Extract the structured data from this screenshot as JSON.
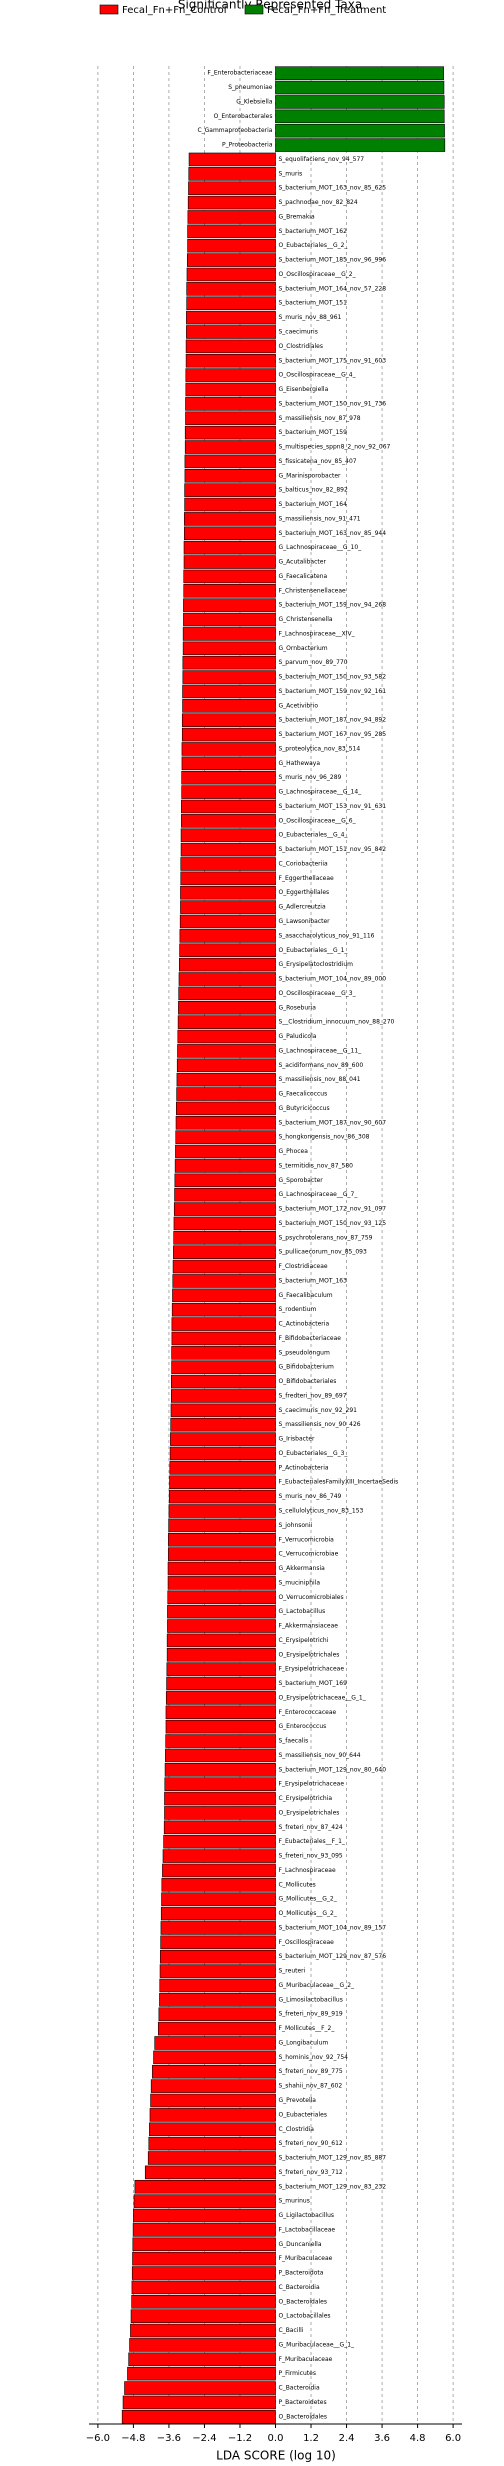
{
  "chart_data": {
    "type": "bar",
    "orientation": "horizontal",
    "title": "Significantly Represented Taxa",
    "x_label": "LDA SCORE (log 10)",
    "categories": [
      "F_Enterobacteriaceae",
      "S_pneumoniae",
      "G_Klebsiella",
      "O_Enterobacterales",
      "C_Gammaproteobacteria",
      "P_Proteobacteria",
      "S_equolifaciens_nov_94_577",
      "S_muris",
      "S_bacterium_MOT_163_nov_85_625",
      "S_pachnodae_nov_82_824",
      "G_Bremakia",
      "S_bacterium_MOT_162",
      "O_Eubacteriales__G_2_",
      "S_bacterium_MOT_185_nov_96_996",
      "O_Oscillospiraceae__G_2_",
      "S_bacterium_MOT_164_nov_57_228",
      "S_bacterium_MOT_151",
      "S_muris_nov_88_961",
      "S_caecimuris",
      "O_Clostridiales",
      "S_bacterium_MOT_175_nov_91_603",
      "O_Oscillospiraceae__G_4_",
      "G_Eisenbergiella",
      "S_bacterium_MOT_150_nov_91_736",
      "S_massiliensis_nov_87_978",
      "S_bacterium_MOT_159",
      "S_multispecies_sppn8_2_nov_92_067",
      "S_fissicatena_nov_85_407",
      "G_Marinisporobacter",
      "S_balticus_nov_82_892",
      "S_bacterium_MOT_164",
      "S_massiliensis_nov_91_471",
      "S_bacterium_MOT_163_nov_85_944",
      "G_Lachnospiraceae__G_10_",
      "G_Acutalibacter",
      "G_Faecalicatena",
      "F_Christensenellaceae",
      "S_bacterium_MOT_159_nov_94_268",
      "G_Christensenella",
      "F_Lachnospiraceae__XIV_",
      "G_Ornbacterium",
      "S_parvum_nov_89_770",
      "S_bacterium_MOT_150_nov_93_582",
      "S_bacterium_MOT_159_nov_92_161",
      "G_Acetivibrio",
      "S_bacterium_MOT_187_nov_94_892",
      "S_bacterium_MOT_167_nov_95_285",
      "S_proteolytica_nov_83_514",
      "G_Hathewaya",
      "S_muris_nov_96_289",
      "G_Lachnospiraceae__G_14_",
      "S_bacterium_MOT_153_nov_91_631",
      "O_Oscillospiraceae__G_6_",
      "O_Eubacteriales__G_4_",
      "S_bacterium_MOT_151_nov_95_842",
      "C_Coriobacteriia",
      "F_Eggerthellaceae",
      "O_Eggerthellales",
      "G_Adlercreutzia",
      "G_Lawsonibacter",
      "S_asaccharolyticus_nov_91_116",
      "O_Eubacteriales__G_1_",
      "G_Erysipelatoclostridium",
      "S_bacterium_MOT_104_nov_89_000",
      "O_Oscillospiraceae__G_3_",
      "G_Roseburia",
      "S__Clostridium_innocuum_nov_88_270",
      "G_Paludicola",
      "G_Lachnospiraceae__G_11_",
      "S_acidiformans_nov_89_600",
      "S_massiliensis_nov_88_041",
      "G_Faecalicoccus",
      "G_Butyricicoccus",
      "S_bacterium_MOT_187_nov_90_607",
      "S_hongkongensis_nov_86_308",
      "G_Phocea",
      "S_termitidis_nov_87_580",
      "G_Sporobacter",
      "G_Lachnospiraceae__G_7_",
      "S_bacterium_MOT_172_nov_91_097",
      "S_bacterium_MOT_150_nov_93_125",
      "S_psychrotolerans_nov_87_759",
      "S_pullicaecorum_nov_85_093",
      "F_Clostridiaceae",
      "S_bacterium_MOT_163",
      "G_Faecalibaculum",
      "S_rodentium",
      "C_Actinobacteria",
      "F_Bifidobacteriaceae",
      "S_pseudolongum",
      "G_Bifidobacterium",
      "O_Bifidobacteriales",
      "S_fredteri_nov_89_697",
      "S_caecimuris_nov_92_291",
      "S_massiliensis_nov_90_426",
      "G_Irisbacter",
      "O_Eubacteriales__G_3_",
      "P_Actinobacteria",
      "F_EubacterialesFamilyXIII_IncertaeSedis",
      "S_muris_nov_86_749",
      "S_cellulolyticus_nov_83_153",
      "S_johnsonii",
      "F_Verrucomicrobia",
      "C_Verrucomicrobiae",
      "G_Akkermansia",
      "S_muciniphila",
      "O_Verrucomicrobiales",
      "G_Lactobacillus",
      "F_Akkermansiaceae",
      "C_Erysipelotrichi",
      "O_Erysipelotrichales",
      "F_Erysipelotrichaceae",
      "S_bacterium_MOT_169",
      "O_Erysipelotrichaceae__G_1_",
      "F_Enterococcaceae",
      "G_Enterococcus",
      "S_faecalis",
      "S_massiliensis_nov_90_644",
      "S_bacterium_MOT_129_nov_80_640",
      "F_Erysipelotrichaceae",
      "C_Erysipelotrichia",
      "O_Erysipelotrichales",
      "S_freteri_nov_87_424",
      "F_Eubacteriales__F_1_",
      "S_freteri_nov_93_095",
      "F_Lachnospiraceae",
      "C_Mollicutes",
      "G_Mollicutes__G_2_",
      "O_Mollicutes__G_2_",
      "S_bacterium_MOT_104_nov_89_157",
      "F_Oscillospiraceae",
      "S_bacterium_MOT_129_nov_87_576",
      "S_reuteri",
      "G_Muribaculaceae__G_2_",
      "G_Limosilactobacillus",
      "S_freteri_nov_89_919",
      "F_Mollicutes__F_2_",
      "G_Longibaculum",
      "S_hominis_nov_92_754",
      "S_freteri_nov_89_775",
      "S_shahii_nov_87_602",
      "G_Prevotella",
      "O_Eubacteriales",
      "C_Clostridia",
      "S_freteri_nov_90_612",
      "S_bacterium_MOT_129_nov_85_887",
      "S_freteri_nov_93_712",
      "S_bacterium_MOT_129_nov_83_232",
      "S_murinus",
      "G_Ligilactobacillus",
      "F_Lactobacillaceae",
      "G_Duncaniella",
      "F_Muribaculaceae",
      "P_Bacteroidota",
      "C_Bacteroidia",
      "O_Bacteroidales",
      "O_Lactobacillales",
      "C_Bacilli",
      "G_Muribaculaceae__G_1_",
      "F_Muribaculaceae",
      "P_Firmicutes",
      "C_Bacteroidia",
      "P_Bacteroidetes",
      "O_Bacteroidales"
    ],
    "series": [
      {
        "name": "Fecal_Fn+Fn_Control",
        "color": "#ff0000",
        "values": [
          null,
          null,
          null,
          null,
          null,
          null,
          -2.92,
          -2.93,
          -2.94,
          -2.95,
          -2.96,
          -2.97,
          -2.97,
          -2.98,
          -2.99,
          -3.0,
          -3.0,
          -3.01,
          -3.01,
          -3.02,
          -3.02,
          -3.03,
          -3.03,
          -3.04,
          -3.04,
          -3.05,
          -3.05,
          -3.06,
          -3.06,
          -3.07,
          -3.07,
          -3.08,
          -3.08,
          -3.09,
          -3.09,
          -3.1,
          -3.1,
          -3.11,
          -3.11,
          -3.12,
          -3.12,
          -3.13,
          -3.13,
          -3.14,
          -3.14,
          -3.15,
          -3.15,
          -3.16,
          -3.16,
          -3.17,
          -3.17,
          -3.18,
          -3.18,
          -3.19,
          -3.19,
          -3.2,
          -3.2,
          -3.21,
          -3.21,
          -3.22,
          -3.23,
          -3.24,
          -3.25,
          -3.26,
          -3.27,
          -3.28,
          -3.29,
          -3.3,
          -3.31,
          -3.32,
          -3.33,
          -3.34,
          -3.35,
          -3.36,
          -3.37,
          -3.38,
          -3.39,
          -3.4,
          -3.41,
          -3.42,
          -3.43,
          -3.44,
          -3.45,
          -3.46,
          -3.47,
          -3.48,
          -3.49,
          -3.5,
          -3.5,
          -3.51,
          -3.51,
          -3.52,
          -3.52,
          -3.53,
          -3.54,
          -3.55,
          -3.56,
          -3.57,
          -3.58,
          -3.59,
          -3.6,
          -3.61,
          -3.62,
          -3.62,
          -3.63,
          -3.63,
          -3.64,
          -3.65,
          -3.65,
          -3.66,
          -3.66,
          -3.67,
          -3.68,
          -3.69,
          -3.7,
          -3.7,
          -3.71,
          -3.72,
          -3.73,
          -3.74,
          -3.75,
          -3.75,
          -3.76,
          -3.78,
          -3.8,
          -3.82,
          -3.84,
          -3.85,
          -3.86,
          -3.87,
          -3.88,
          -3.89,
          -3.9,
          -3.91,
          -3.92,
          -3.94,
          -3.96,
          -4.08,
          -4.12,
          -4.16,
          -4.2,
          -4.22,
          -4.24,
          -4.26,
          -4.28,
          -4.3,
          -4.4,
          -4.75,
          -4.78,
          -4.8,
          -4.81,
          -4.82,
          -4.83,
          -4.84,
          -4.85,
          -4.86,
          -4.88,
          -4.9,
          -4.93,
          -4.96,
          -5.0,
          -5.1,
          -5.15,
          -5.18
        ]
      },
      {
        "name": "Fecal_Fn+Fn_Treatment",
        "color": "#008000",
        "values": [
          5.68,
          5.69,
          5.7,
          5.7,
          5.71,
          5.72,
          null,
          null,
          null,
          null,
          null,
          null,
          null,
          null,
          null,
          null,
          null,
          null,
          null,
          null,
          null,
          null,
          null,
          null,
          null,
          null,
          null,
          null,
          null,
          null,
          null,
          null,
          null,
          null,
          null,
          null,
          null,
          null,
          null,
          null,
          null,
          null,
          null,
          null,
          null,
          null,
          null,
          null,
          null,
          null,
          null,
          null,
          null,
          null,
          null,
          null,
          null,
          null,
          null,
          null,
          null,
          null,
          null,
          null,
          null,
          null,
          null,
          null,
          null,
          null,
          null,
          null,
          null,
          null,
          null,
          null,
          null,
          null,
          null,
          null,
          null,
          null,
          null,
          null,
          null,
          null,
          null,
          null,
          null,
          null,
          null,
          null,
          null,
          null,
          null,
          null,
          null,
          null,
          null,
          null,
          null,
          null,
          null,
          null,
          null,
          null,
          null,
          null,
          null,
          null,
          null,
          null,
          null,
          null,
          null,
          null,
          null,
          null,
          null,
          null,
          null,
          null,
          null,
          null,
          null,
          null,
          null,
          null,
          null,
          null,
          null,
          null,
          null,
          null,
          null,
          null,
          null,
          null,
          null,
          null,
          null,
          null,
          null,
          null,
          null,
          null,
          null,
          null,
          null,
          null,
          null,
          null,
          null,
          null,
          null,
          null,
          null,
          null,
          null,
          null,
          null,
          null,
          null,
          null
        ]
      }
    ],
    "xlim": [
      -6.3,
      6.3
    ],
    "xticks": [
      {
        "value": -6,
        "label": "−6.0"
      },
      {
        "value": -4.8,
        "label": "−4.8"
      },
      {
        "value": -3.6,
        "label": "−3.6"
      },
      {
        "value": -2.4,
        "label": "−2.4"
      },
      {
        "value": -1.2,
        "label": "−1.2"
      },
      {
        "value": 0,
        "label": "0.0"
      },
      1.2,
      2.4,
      3.6,
      4.8,
      {
        "value": 6,
        "label": "6.0"
      }
    ],
    "grid": true,
    "legend": "top"
  }
}
